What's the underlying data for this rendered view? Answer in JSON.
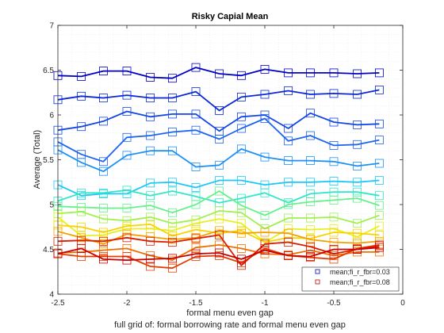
{
  "chart_data": {
    "type": "line",
    "title": "Risky Capial Mean",
    "xlabel": "formal menu even gap",
    "ylabel": "Average (Total)",
    "caption": "full grid of: formal borrowing rate and formal menu even gap",
    "xlim": [
      -2.5,
      0
    ],
    "ylim": [
      4,
      7
    ],
    "xticks": [
      -2.5,
      -2,
      -1.5,
      -1,
      -0.5,
      0
    ],
    "xtick_labels": [
      "-2.5",
      "-2",
      "-1.5",
      "-1",
      "-0.5",
      "0"
    ],
    "yticks": [
      4,
      4.5,
      5,
      5.5,
      6,
      6.5,
      7
    ],
    "ytick_labels": [
      "4",
      "4.5",
      "5",
      "5.5",
      "6",
      "6.5",
      "7"
    ],
    "grid": "dotted",
    "legend_position": "bottom-right",
    "marker": "square",
    "x": [
      -2.5,
      -2.33,
      -2.17,
      -2.0,
      -1.83,
      -1.67,
      -1.5,
      -1.33,
      -1.17,
      -1.0,
      -0.83,
      -0.67,
      -0.5,
      -0.33,
      -0.17
    ],
    "series": [
      {
        "name": "mean;fi_r_fbr=0.03",
        "color": "#0000c8",
        "values": [
          6.44,
          6.43,
          6.49,
          6.49,
          6.42,
          6.41,
          6.53,
          6.46,
          6.44,
          6.51,
          6.47,
          6.47,
          6.47,
          6.46,
          6.47
        ]
      },
      {
        "color": "#0a28d8",
        "values": [
          6.17,
          6.21,
          6.19,
          6.22,
          6.19,
          6.19,
          6.26,
          6.05,
          6.2,
          6.23,
          6.27,
          6.23,
          6.24,
          6.23,
          6.28
        ]
      },
      {
        "color": "#1446e6",
        "values": [
          5.83,
          5.87,
          5.93,
          6.04,
          5.98,
          6.01,
          6.01,
          5.82,
          5.98,
          6.0,
          5.85,
          6.02,
          5.92,
          5.89,
          5.9
        ]
      },
      {
        "color": "#1e64f0",
        "values": [
          5.7,
          5.56,
          5.48,
          5.75,
          5.77,
          5.81,
          5.83,
          5.73,
          5.85,
          5.96,
          5.71,
          5.77,
          5.66,
          5.67,
          5.72
        ]
      },
      {
        "color": "#1e90f5",
        "values": [
          5.61,
          5.47,
          5.37,
          5.55,
          5.6,
          5.6,
          5.42,
          5.44,
          5.62,
          5.53,
          5.49,
          5.49,
          5.48,
          5.43,
          5.46
        ]
      },
      {
        "color": "#1ec8f5",
        "values": [
          5.22,
          5.1,
          5.12,
          5.12,
          5.24,
          5.25,
          5.19,
          5.27,
          5.27,
          5.22,
          5.25,
          5.25,
          5.26,
          5.25,
          5.27
        ]
      },
      {
        "color": "#32e6c8",
        "values": [
          5.04,
          5.13,
          5.13,
          5.16,
          5.1,
          5.15,
          5.09,
          5.02,
          5.07,
          5.13,
          5.02,
          5.12,
          5.14,
          5.14,
          5.1
        ]
      },
      {
        "color": "#64f08c",
        "values": [
          4.98,
          4.97,
          4.96,
          4.96,
          4.99,
          4.91,
          5.0,
          5.15,
          4.99,
          4.88,
          5.0,
          5.03,
          5.05,
          5.07,
          4.99
        ]
      },
      {
        "color": "#a0f050",
        "values": [
          4.9,
          4.92,
          4.84,
          4.82,
          4.86,
          4.79,
          4.83,
          4.93,
          4.91,
          4.73,
          4.85,
          4.85,
          4.86,
          4.79,
          4.88
        ]
      },
      {
        "color": "#e6f01e",
        "values": [
          4.86,
          4.65,
          4.66,
          4.73,
          4.73,
          4.71,
          4.79,
          4.84,
          4.79,
          4.58,
          4.73,
          4.72,
          4.73,
          4.64,
          4.76
        ]
      },
      {
        "color": "#fad200",
        "values": [
          4.77,
          4.75,
          4.69,
          4.76,
          4.78,
          4.65,
          4.72,
          4.68,
          4.71,
          4.58,
          4.63,
          4.62,
          4.69,
          4.68,
          4.66
        ]
      },
      {
        "color": "#f5a000",
        "values": [
          4.7,
          4.63,
          4.56,
          4.67,
          4.64,
          4.61,
          4.63,
          4.71,
          4.68,
          4.69,
          4.68,
          4.61,
          4.58,
          4.57,
          4.59
        ]
      },
      {
        "color": "#f06e00",
        "values": [
          4.46,
          4.47,
          4.49,
          4.51,
          4.43,
          4.38,
          4.52,
          4.55,
          4.51,
          4.45,
          4.44,
          4.49,
          4.43,
          4.47,
          4.47
        ]
      },
      {
        "color": "#e63c00",
        "values": [
          4.45,
          4.42,
          4.42,
          4.42,
          4.31,
          4.29,
          4.42,
          4.43,
          4.35,
          4.51,
          4.43,
          4.41,
          4.39,
          4.51,
          4.55
        ]
      },
      {
        "color": "#dc1e00",
        "values": [
          4.59,
          4.6,
          4.59,
          4.63,
          4.59,
          4.58,
          4.62,
          4.66,
          4.32,
          4.56,
          4.58,
          4.53,
          4.45,
          4.5,
          4.54
        ]
      },
      {
        "name": "mean;fi_r_fbr=0.08",
        "color": "#c80000",
        "values": [
          4.45,
          4.51,
          4.39,
          4.38,
          4.39,
          4.4,
          4.45,
          4.46,
          4.39,
          4.49,
          4.43,
          4.42,
          4.5,
          4.5,
          4.52
        ]
      }
    ],
    "legend": [
      {
        "label": "mean;fi_r_fbr=0.03",
        "color": "#0000c8"
      },
      {
        "label": "mean;fi_r_fbr=0.08",
        "color": "#c80000"
      }
    ]
  }
}
